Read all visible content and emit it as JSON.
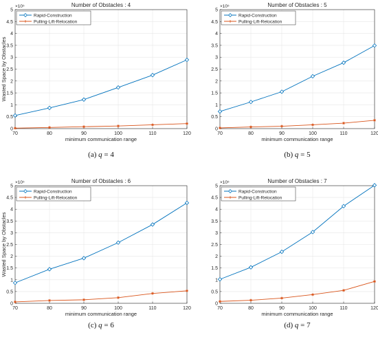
{
  "colors": {
    "rapid": "#0072BD",
    "pulling": "#D95319",
    "grid": "#e6e6e6",
    "axis": "#262626"
  },
  "chart_data": [
    {
      "type": "line",
      "title": "Number of Obstacles : 4",
      "xlabel": "minimum communication range",
      "ylabel": "Wasted Space by Obstacles",
      "exponent": "×10⁵",
      "x": [
        70,
        80,
        90,
        100,
        110,
        120
      ],
      "xlim": [
        70,
        120
      ],
      "ylim": [
        0,
        5
      ],
      "yticks": [
        "0",
        "0.5",
        "1",
        "1.5",
        "2",
        "2.5",
        "3",
        "3.5",
        "4",
        "4.5",
        "5"
      ],
      "grid": true,
      "legend_position": "top-left",
      "series": [
        {
          "name": "Rapid-Construction",
          "marker": "diamond",
          "values": [
            0.55,
            0.87,
            1.22,
            1.73,
            2.25,
            2.89
          ]
        },
        {
          "name": "Pulling-Lift-Relocation",
          "marker": "asterisk",
          "values": [
            0.02,
            0.05,
            0.08,
            0.11,
            0.16,
            0.21
          ]
        }
      ],
      "caption_label": "(a)",
      "caption_var": "q",
      "caption_eq": " = 4"
    },
    {
      "type": "line",
      "title": "Number of Obstacles : 5",
      "xlabel": "minimum communication range",
      "ylabel": "",
      "exponent": "×10⁵",
      "x": [
        70,
        80,
        90,
        100,
        110,
        120
      ],
      "xlim": [
        70,
        120
      ],
      "ylim": [
        0,
        5
      ],
      "yticks": [
        "0",
        "0.5",
        "1",
        "1.5",
        "2",
        "2.5",
        "3",
        "3.5",
        "4",
        "4.5",
        "5"
      ],
      "grid": true,
      "legend_position": "top-left",
      "series": [
        {
          "name": "Rapid-Construction",
          "marker": "diamond",
          "values": [
            0.72,
            1.12,
            1.55,
            2.2,
            2.77,
            3.49
          ]
        },
        {
          "name": "Pulling-Lift-Relocation",
          "marker": "asterisk",
          "values": [
            0.03,
            0.07,
            0.1,
            0.16,
            0.23,
            0.35
          ]
        }
      ],
      "caption_label": "(b)",
      "caption_var": "q",
      "caption_eq": " = 5"
    },
    {
      "type": "line",
      "title": "Number of Obstacles : 6",
      "xlabel": "minimum communication range",
      "ylabel": "Wasted Space by Obstacles",
      "exponent": "×10⁵",
      "x": [
        70,
        80,
        90,
        100,
        110,
        120
      ],
      "xlim": [
        70,
        120
      ],
      "ylim": [
        0,
        5
      ],
      "yticks": [
        "0",
        "0.5",
        "1",
        "1.5",
        "2",
        "2.5",
        "3",
        "3.5",
        "4",
        "4.5",
        "5"
      ],
      "grid": true,
      "legend_position": "top-left",
      "series": [
        {
          "name": "Rapid-Construction",
          "marker": "diamond",
          "values": [
            0.87,
            1.45,
            1.92,
            2.58,
            3.35,
            4.27
          ]
        },
        {
          "name": "Pulling-Lift-Relocation",
          "marker": "asterisk",
          "values": [
            0.06,
            0.12,
            0.15,
            0.24,
            0.42,
            0.53
          ]
        }
      ],
      "caption_label": "(c)",
      "caption_var": "q",
      "caption_eq": " = 6"
    },
    {
      "type": "line",
      "title": "Number of Obstacles : 7",
      "xlabel": "minimum communication range",
      "ylabel": "",
      "exponent": "×10⁵",
      "x": [
        70,
        80,
        90,
        100,
        110,
        120
      ],
      "xlim": [
        70,
        120
      ],
      "ylim": [
        0,
        5
      ],
      "yticks": [
        "0",
        "0.5",
        "1",
        "1.5",
        "2",
        "2.5",
        "3",
        "3.5",
        "4",
        "4.5",
        "5"
      ],
      "grid": true,
      "legend_position": "top-left",
      "series": [
        {
          "name": "Rapid-Construction",
          "marker": "diamond",
          "values": [
            1.02,
            1.53,
            2.19,
            3.03,
            4.13,
            5.02
          ]
        },
        {
          "name": "Pulling-Lift-Relocation",
          "marker": "asterisk",
          "values": [
            0.08,
            0.13,
            0.22,
            0.37,
            0.55,
            0.93
          ]
        }
      ],
      "caption_label": "(d)",
      "caption_var": "q",
      "caption_eq": " = 7"
    }
  ]
}
